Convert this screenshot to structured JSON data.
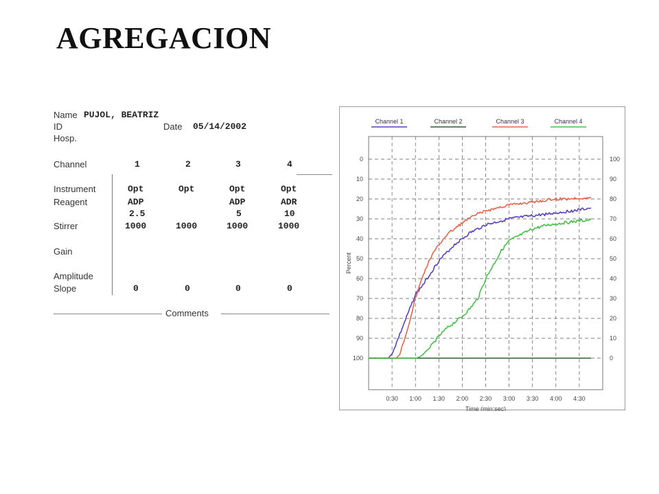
{
  "slide": {
    "title": "AGREGACION"
  },
  "report": {
    "name_label": "Name",
    "name_value": "PUJOL, BEATRIZ",
    "id_label": "ID",
    "date_label": "Date",
    "date_value": "05/14/2002",
    "hosp_label": "Hosp.",
    "channel_label": "Channel",
    "channels": [
      "1",
      "2",
      "3",
      "4"
    ],
    "instrument_label": "Instrument",
    "instrument": [
      "Opt",
      "Opt",
      "Opt",
      "Opt"
    ],
    "reagent_label": "Reagent",
    "reagent": [
      "ADP",
      "",
      "ADP",
      "ADR"
    ],
    "reagent_dose": [
      "2.5",
      "",
      "5",
      "10"
    ],
    "stirrer_label": "Stirrer",
    "stirrer": [
      "1000",
      "1000",
      "1000",
      "1000"
    ],
    "gain_label": "Gain",
    "amplitude_label": "Amplitude",
    "slope_label": "Slope",
    "slope": [
      "0",
      "0",
      "0",
      "0"
    ],
    "comments_label": "Comments"
  },
  "chart_data": {
    "type": "line",
    "xlabel": "Time (min:sec)",
    "ylabel": "Percent",
    "x_ticks": [
      "0:30",
      "1:00",
      "1:30",
      "2:00",
      "2:30",
      "3:00",
      "3:30",
      "4:00",
      "4:30"
    ],
    "x_tick_values": [
      30,
      60,
      90,
      120,
      150,
      180,
      210,
      240,
      270
    ],
    "xlim": [
      0,
      300
    ],
    "y_left_ticks": [
      "0",
      "10",
      "20",
      "30",
      "40",
      "50",
      "60",
      "70",
      "80",
      "90",
      "100"
    ],
    "y_left_values": [
      0,
      10,
      20,
      30,
      40,
      50,
      60,
      70,
      80,
      90,
      100
    ],
    "y_right_ticks": [
      "100",
      "90",
      "80",
      "70",
      "60",
      "50",
      "40",
      "30",
      "20",
      "10",
      "0"
    ],
    "ylim": [
      0,
      100
    ],
    "y_inverted": true,
    "grid": true,
    "legend_position": "top",
    "series": [
      {
        "name": "Channel 1",
        "color": "#5a3fc0",
        "x": [
          0,
          25,
          30,
          40,
          50,
          60,
          70,
          80,
          90,
          100,
          110,
          120,
          130,
          140,
          150,
          160,
          170,
          180,
          190,
          200,
          210,
          220,
          230,
          240,
          250,
          260,
          270,
          285
        ],
        "y": [
          100,
          100,
          98,
          88,
          78,
          68,
          63,
          57,
          51,
          47,
          43,
          40,
          37,
          35,
          33,
          32,
          31,
          30,
          29.5,
          29,
          28.5,
          28,
          27.5,
          27,
          26.5,
          26,
          25.5,
          24.5
        ]
      },
      {
        "name": "Channel 2",
        "color": "#2f5f2f",
        "x": [
          0,
          285
        ],
        "y": [
          100,
          100
        ]
      },
      {
        "name": "Channel 3",
        "color": "#e8644a",
        "x": [
          0,
          35,
          40,
          50,
          60,
          70,
          80,
          90,
          100,
          110,
          120,
          130,
          140,
          150,
          160,
          170,
          180,
          190,
          200,
          210,
          220,
          230,
          240,
          250,
          260,
          270,
          285
        ],
        "y": [
          100,
          100,
          98,
          85,
          70,
          58,
          49,
          43,
          38,
          35,
          32,
          29.5,
          27.5,
          26,
          25,
          24,
          23,
          22.5,
          22,
          21.5,
          21,
          20.5,
          20,
          20,
          19.8,
          19.5,
          19.5
        ]
      },
      {
        "name": "Channel 4",
        "color": "#46c04a",
        "x": [
          0,
          60,
          65,
          70,
          80,
          90,
          100,
          110,
          120,
          130,
          140,
          150,
          160,
          170,
          180,
          190,
          200,
          210,
          220,
          230,
          240,
          250,
          260,
          270,
          285
        ],
        "y": [
          100,
          100,
          99.5,
          98,
          94,
          89,
          85,
          82,
          79,
          75,
          70,
          60,
          53,
          46,
          41,
          39,
          37,
          35,
          34,
          33,
          32.5,
          32,
          31.5,
          31,
          30.5
        ]
      }
    ]
  }
}
